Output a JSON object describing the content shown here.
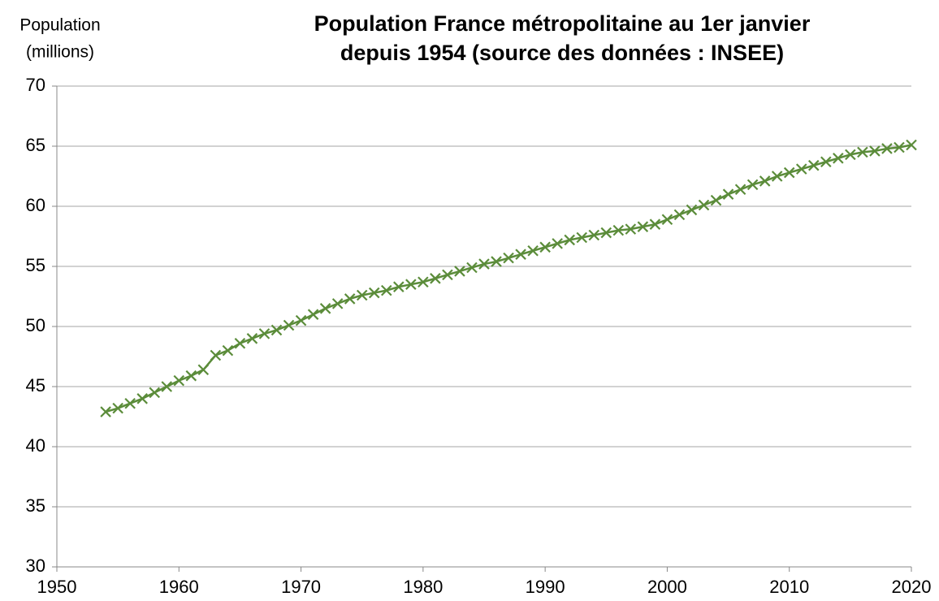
{
  "chart_data": {
    "type": "line",
    "title": [
      "Population France métropolitaine au 1er janvier",
      "depuis 1954 (source des données : INSEE)"
    ],
    "ylabel": [
      "Population",
      "(millions)"
    ],
    "x": [
      1954,
      1955,
      1956,
      1957,
      1958,
      1959,
      1960,
      1961,
      1962,
      1963,
      1964,
      1965,
      1966,
      1967,
      1968,
      1969,
      1970,
      1971,
      1972,
      1973,
      1974,
      1975,
      1976,
      1977,
      1978,
      1979,
      1980,
      1981,
      1982,
      1983,
      1984,
      1985,
      1986,
      1987,
      1988,
      1989,
      1990,
      1991,
      1992,
      1993,
      1994,
      1995,
      1996,
      1997,
      1998,
      1999,
      2000,
      2001,
      2002,
      2003,
      2004,
      2005,
      2006,
      2007,
      2008,
      2009,
      2010,
      2011,
      2012,
      2013,
      2014,
      2015,
      2016,
      2017,
      2018,
      2019,
      2020
    ],
    "series": [
      {
        "color": "#5b8c3a",
        "values": [
          42.9,
          43.2,
          43.6,
          44.0,
          44.5,
          45.0,
          45.5,
          45.9,
          46.4,
          47.6,
          48.0,
          48.6,
          49.0,
          49.4,
          49.7,
          50.1,
          50.5,
          51.0,
          51.5,
          51.9,
          52.3,
          52.6,
          52.8,
          53.0,
          53.3,
          53.5,
          53.7,
          54.0,
          54.3,
          54.6,
          54.9,
          55.2,
          55.4,
          55.7,
          56.0,
          56.3,
          56.6,
          56.9,
          57.2,
          57.4,
          57.6,
          57.8,
          58.0,
          58.1,
          58.3,
          58.5,
          58.9,
          59.3,
          59.7,
          60.1,
          60.5,
          61.0,
          61.4,
          61.8,
          62.1,
          62.5,
          62.8,
          63.1,
          63.4,
          63.7,
          64.0,
          64.3,
          64.5,
          64.6,
          64.8,
          64.9,
          65.1
        ]
      }
    ],
    "xlim": [
      1950,
      2020
    ],
    "xticks": [
      1950,
      1960,
      1970,
      1980,
      1990,
      2000,
      2010,
      2020
    ],
    "ylim": [
      30,
      70
    ],
    "yticks": [
      30,
      35,
      40,
      45,
      50,
      55,
      60,
      65,
      70
    ],
    "grid": true
  }
}
